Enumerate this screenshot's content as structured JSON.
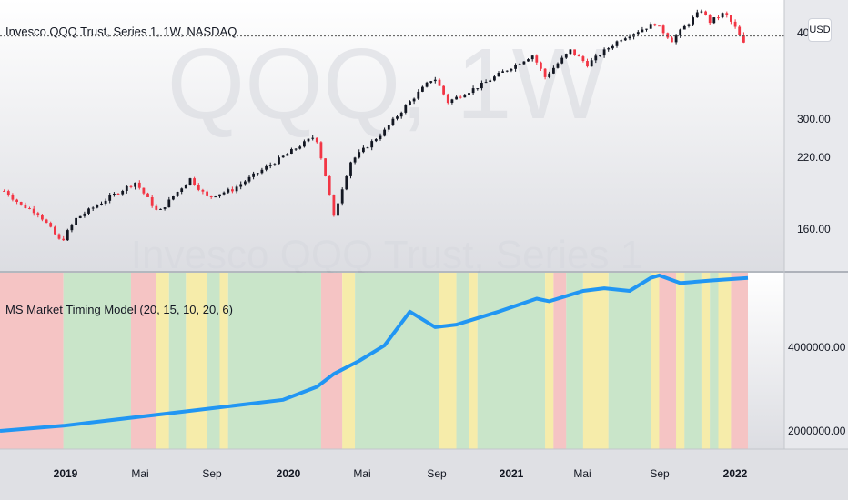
{
  "main_chart": {
    "title": "Invesco QQQ Trust, Series 1, 1W, NASDAQ",
    "watermark_symbol": "QQQ, 1W",
    "watermark_name": "Invesco QQQ Trust, Series 1",
    "price_ticks": [
      "400.00",
      "300.00",
      "220.00",
      "160.00"
    ],
    "currency_button": "USD"
  },
  "indicator": {
    "title": "MS Market Timing Model (20, 15, 10, 20, 6)",
    "ticks": [
      "4000000.00",
      "2000000.00"
    ]
  },
  "time_axis": {
    "labels": [
      {
        "text": "2019",
        "bold": true
      },
      {
        "text": "Mai",
        "bold": false
      },
      {
        "text": "Sep",
        "bold": false
      },
      {
        "text": "2020",
        "bold": true
      },
      {
        "text": "Mai",
        "bold": false
      },
      {
        "text": "Sep",
        "bold": false
      },
      {
        "text": "2021",
        "bold": true
      },
      {
        "text": "Mai",
        "bold": false
      },
      {
        "text": "Sep",
        "bold": false
      },
      {
        "text": "2022",
        "bold": true
      }
    ]
  },
  "colors": {
    "up_candle": "#131722",
    "down_candle": "#f23645",
    "equity_line": "#2196f3",
    "zone_red": "#f5c4c4",
    "zone_green": "#c9e5c9",
    "zone_yellow": "#f6ecaa"
  },
  "chart_data": [
    {
      "type": "candlestick",
      "title": "Invesco QQQ Trust, Series 1, 1W, NASDAQ",
      "x_range": [
        "2018-09",
        "2022-02"
      ],
      "ylim": [
        135,
        410
      ],
      "y_scale": "log",
      "anchors": [
        [
          "2018-09-21",
          185
        ],
        [
          "2018-10-19",
          174
        ],
        [
          "2018-11-16",
          168
        ],
        [
          "2018-12-24",
          148
        ],
        [
          "2019-01-18",
          164
        ],
        [
          "2019-04-26",
          192
        ],
        [
          "2019-06-03",
          168
        ],
        [
          "2019-07-26",
          195
        ],
        [
          "2019-08-23",
          180
        ],
        [
          "2019-10-04",
          186
        ],
        [
          "2019-12-20",
          212
        ],
        [
          "2020-02-19",
          235
        ],
        [
          "2020-03-20",
          165
        ],
        [
          "2020-04-17",
          210
        ],
        [
          "2020-06-12",
          240
        ],
        [
          "2020-09-02",
          303
        ],
        [
          "2020-09-25",
          272
        ],
        [
          "2020-11-20",
          293
        ],
        [
          "2021-02-12",
          333
        ],
        [
          "2021-03-05",
          303
        ],
        [
          "2021-04-16",
          340
        ],
        [
          "2021-05-14",
          320
        ],
        [
          "2021-07-09",
          358
        ],
        [
          "2021-09-03",
          382
        ],
        [
          "2021-10-01",
          355
        ],
        [
          "2021-11-19",
          405
        ],
        [
          "2021-12-03",
          385
        ],
        [
          "2021-12-27",
          400
        ],
        [
          "2022-01-14",
          375
        ],
        [
          "2022-01-28",
          350
        ]
      ],
      "last_price": 350
    },
    {
      "type": "line",
      "title": "MS Market Timing Model (20, 15, 10, 20, 6)",
      "ylim": [
        1700000,
        5100000
      ],
      "series": [
        {
          "x": [
            "2018-09-14",
            "2018-12-28",
            "2019-06-28",
            "2019-12-27",
            "2020-02-21",
            "2020-03-20",
            "2020-05-01",
            "2020-06-12",
            "2020-07-24",
            "2020-09-04",
            "2020-10-09",
            "2020-12-18",
            "2021-02-19",
            "2021-03-12",
            "2021-05-07",
            "2021-06-11",
            "2021-07-23",
            "2021-08-27",
            "2021-09-10",
            "2021-10-15",
            "2021-12-03",
            "2022-02-04"
          ],
          "values": [
            2050000,
            2150000,
            2400000,
            2650000,
            2900000,
            3150000,
            3400000,
            3700000,
            4350000,
            4050000,
            4100000,
            4350000,
            4600000,
            4550000,
            4750000,
            4800000,
            4750000,
            5000000,
            5050000,
            4900000,
            4950000,
            5000000
          ]
        }
      ],
      "regimes": [
        {
          "start": "2018-09-14",
          "end": "2018-12-28",
          "state": "red"
        },
        {
          "start": "2018-12-28",
          "end": "2019-04-19",
          "state": "green"
        },
        {
          "start": "2019-04-19",
          "end": "2019-05-31",
          "state": "red"
        },
        {
          "start": "2019-05-31",
          "end": "2019-06-21",
          "state": "yellow"
        },
        {
          "start": "2019-06-21",
          "end": "2019-07-19",
          "state": "green"
        },
        {
          "start": "2019-07-19",
          "end": "2019-08-23",
          "state": "yellow"
        },
        {
          "start": "2019-08-23",
          "end": "2019-09-13",
          "state": "green"
        },
        {
          "start": "2019-09-13",
          "end": "2019-09-27",
          "state": "yellow"
        },
        {
          "start": "2019-09-27",
          "end": "2020-02-28",
          "state": "green"
        },
        {
          "start": "2020-02-28",
          "end": "2020-04-03",
          "state": "red"
        },
        {
          "start": "2020-04-03",
          "end": "2020-04-24",
          "state": "yellow"
        },
        {
          "start": "2020-04-24",
          "end": "2020-09-11",
          "state": "green"
        },
        {
          "start": "2020-09-11",
          "end": "2020-10-09",
          "state": "yellow"
        },
        {
          "start": "2020-10-09",
          "end": "2020-10-30",
          "state": "green"
        },
        {
          "start": "2020-10-30",
          "end": "2020-11-13",
          "state": "yellow"
        },
        {
          "start": "2020-11-13",
          "end": "2021-03-05",
          "state": "green"
        },
        {
          "start": "2021-03-05",
          "end": "2021-03-19",
          "state": "yellow"
        },
        {
          "start": "2021-03-19",
          "end": "2021-04-09",
          "state": "red"
        },
        {
          "start": "2021-04-09",
          "end": "2021-05-07",
          "state": "green"
        },
        {
          "start": "2021-05-07",
          "end": "2021-06-18",
          "state": "yellow"
        },
        {
          "start": "2021-06-18",
          "end": "2021-08-27",
          "state": "green"
        },
        {
          "start": "2021-08-27",
          "end": "2021-09-10",
          "state": "yellow"
        },
        {
          "start": "2021-09-10",
          "end": "2021-10-08",
          "state": "red"
        },
        {
          "start": "2021-10-08",
          "end": "2021-10-22",
          "state": "yellow"
        },
        {
          "start": "2021-10-22",
          "end": "2021-11-19",
          "state": "green"
        },
        {
          "start": "2021-11-19",
          "end": "2021-12-03",
          "state": "yellow"
        },
        {
          "start": "2021-12-03",
          "end": "2021-12-17",
          "state": "green"
        },
        {
          "start": "2021-12-17",
          "end": "2022-01-07",
          "state": "yellow"
        },
        {
          "start": "2022-01-07",
          "end": "2022-02-04",
          "state": "red"
        }
      ]
    }
  ]
}
